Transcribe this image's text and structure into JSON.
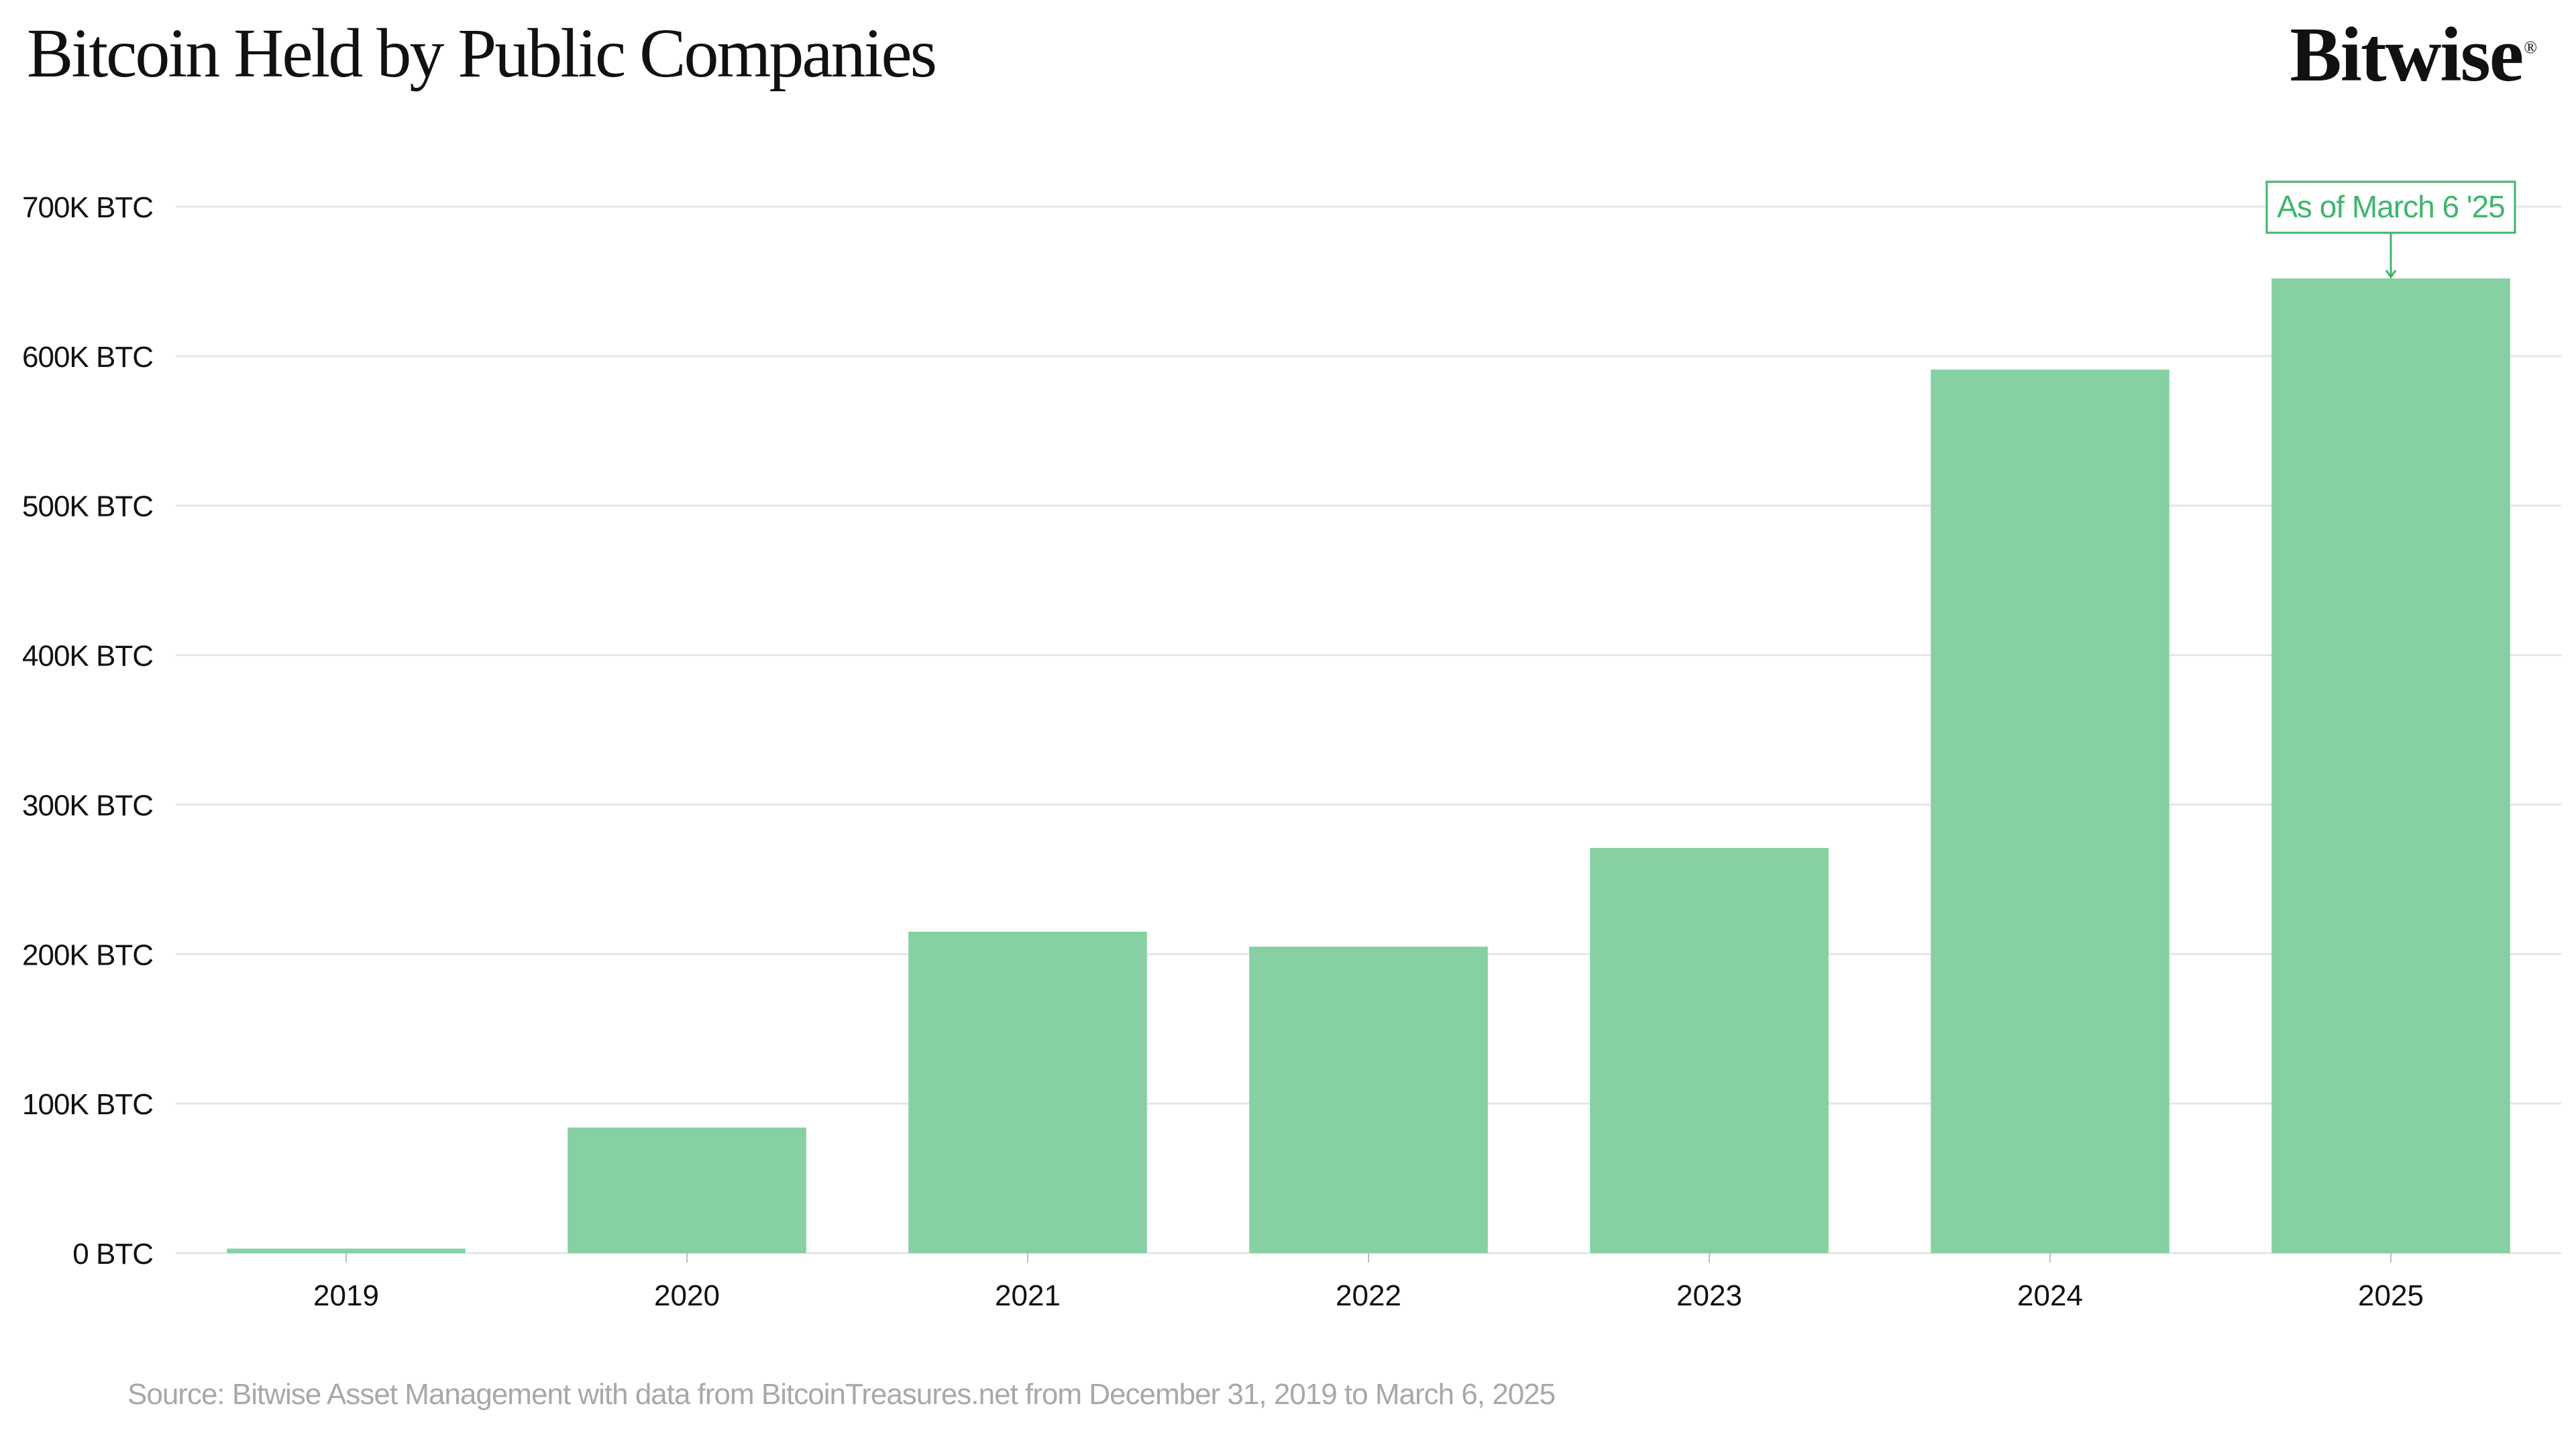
{
  "header": {
    "title": "Bitcoin Held by Public Companies",
    "brand": "Bitwise",
    "brand_mark": "®"
  },
  "footer": {
    "source": "Source: Bitwise Asset Management with data from BitcoinTreasures.net from December 31, 2019 to March 6, 2025"
  },
  "colors": {
    "bar": "#86d0a3",
    "annotation": "#3fb56c",
    "grid": "#e6e6e6",
    "text": "#111111"
  },
  "chart_data": {
    "type": "bar",
    "title": "Bitcoin Held by Public Companies",
    "xlabel": "",
    "ylabel": "",
    "categories": [
      "2019",
      "2020",
      "2021",
      "2022",
      "2023",
      "2024",
      "2025"
    ],
    "values": [
      3000,
      84000,
      215000,
      205000,
      271000,
      591000,
      652000
    ],
    "ylim": [
      0,
      700000
    ],
    "yticks": [
      0,
      100000,
      200000,
      300000,
      400000,
      500000,
      600000,
      700000
    ],
    "ytick_labels": [
      "0 BTC",
      "100K BTC",
      "200K BTC",
      "300K BTC",
      "400K BTC",
      "500K BTC",
      "600K BTC",
      "700K BTC"
    ],
    "grid": true,
    "legend": "none",
    "annotations": [
      {
        "category": "2025",
        "text": "As of March 6 '25"
      }
    ]
  }
}
